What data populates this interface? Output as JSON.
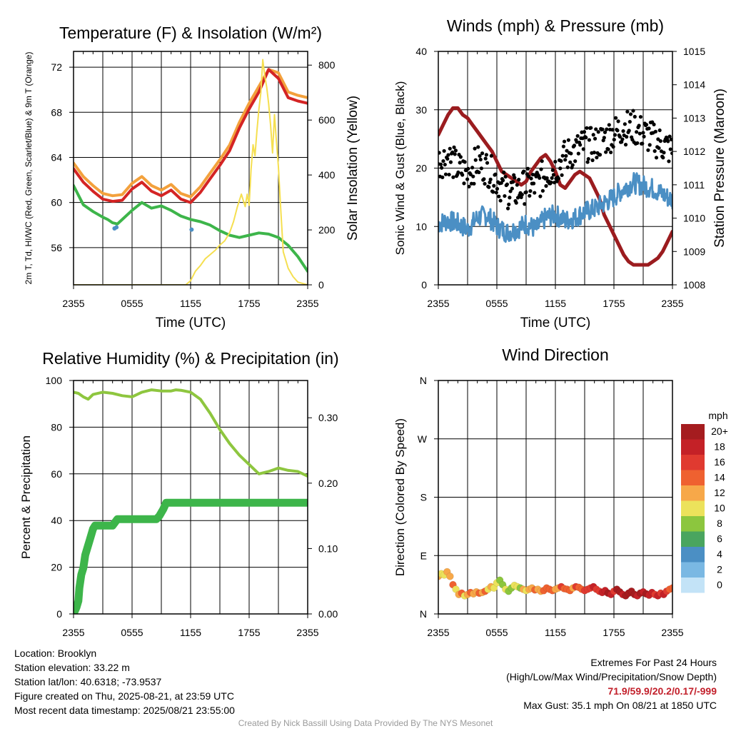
{
  "chart_data": [
    {
      "type": "line",
      "title": "Temperature (F) & Insolation (W/m²)",
      "xlabel": "Time (UTC)",
      "ylabel": "2m T, Td, HI/WC (Red, Green, Scarlet/Blue) & 9m T (Orange)",
      "ylabel_right": "Solar Insolation (Yellow)",
      "x_ticks": [
        "2355",
        "0555",
        "1155",
        "1755",
        "2355"
      ],
      "xlim_hours": [
        0,
        24
      ],
      "y_ticks": [
        56,
        60,
        64,
        68,
        72
      ],
      "ylim": [
        52.7,
        73.4
      ],
      "y2_ticks": [
        0,
        200,
        400,
        600,
        800
      ],
      "y2lim": [
        0,
        850
      ],
      "grid": true,
      "series": [
        {
          "name": "9m T",
          "color": "#f3a13c",
          "axis": "left",
          "width": 4,
          "offset": 0.3,
          "x": [
            0,
            1.0,
            2,
            3,
            4,
            5,
            6,
            7,
            8,
            9,
            10,
            11,
            12,
            13,
            14,
            15,
            16,
            17,
            18,
            19,
            20,
            21,
            22,
            23,
            24
          ],
          "y": [
            63.2,
            62,
            61.2,
            60.5,
            60.3,
            60.4,
            61.4,
            62.0,
            61.2,
            60.8,
            61.3,
            60.5,
            60.2,
            61.1,
            62.3,
            63.5,
            64.8,
            66.8,
            68.5,
            70.0,
            71.5,
            71.2,
            69.5,
            69.2,
            69.0
          ]
        },
        {
          "name": "2m T",
          "color": "#d42424",
          "axis": "left",
          "width": 4,
          "x": [
            0,
            1.0,
            2,
            3,
            4,
            5,
            6,
            7,
            8,
            9,
            10,
            11,
            12,
            13,
            14,
            15,
            16,
            17,
            18,
            19,
            20,
            21,
            22,
            23,
            24
          ],
          "y": [
            63.0,
            61.8,
            61.0,
            60.3,
            60.1,
            60.2,
            61.2,
            61.8,
            61.0,
            60.6,
            61.1,
            60.3,
            60.0,
            60.9,
            62.1,
            63.3,
            64.6,
            66.6,
            68.3,
            69.8,
            71.8,
            71.0,
            69.3,
            69.0,
            68.8
          ]
        },
        {
          "name": "Dewpoint",
          "color": "#3db54a",
          "axis": "left",
          "width": 4,
          "x": [
            0,
            1,
            2,
            3,
            3.5,
            4,
            4.5,
            5,
            6,
            7,
            8,
            9,
            10,
            11,
            12,
            13,
            14,
            15,
            16,
            17,
            18,
            19,
            20,
            21,
            22,
            23,
            24
          ],
          "y": [
            61.5,
            59.8,
            59.2,
            58.7,
            58.5,
            58.2,
            58.1,
            58.5,
            59.3,
            60.0,
            59.5,
            59.7,
            59.3,
            58.8,
            58.5,
            58.3,
            58.0,
            57.5,
            57.1,
            56.9,
            57.1,
            57.3,
            57.2,
            56.9,
            56.2,
            55.2,
            53.9
          ]
        },
        {
          "name": "Heat Index/Wind Chill",
          "color": "#4b8fc4",
          "axis": "left",
          "width": 4,
          "dots": true,
          "x": [
            4.2,
            4.4,
            12.1
          ],
          "y": [
            57.7,
            57.8,
            57.6
          ]
        },
        {
          "name": "Solar Insolation",
          "color": "#f5df50",
          "axis": "right",
          "width": 2,
          "x": [
            0,
            11.5,
            12.0,
            12.5,
            13,
            13.5,
            14,
            14.5,
            15,
            15.5,
            16,
            16.4,
            16.8,
            17.2,
            17.6,
            17.8,
            18.0,
            18.2,
            18.4,
            18.6,
            18.8,
            19.0,
            19.2,
            19.4,
            19.6,
            19.8,
            20.0,
            20.2,
            20.4,
            20.6,
            20.8,
            21.0,
            21.2,
            21.5,
            22,
            22.5,
            23,
            24
          ],
          "y": [
            0,
            0,
            15,
            50,
            70,
            95,
            110,
            125,
            145,
            160,
            190,
            230,
            285,
            330,
            285,
            330,
            290,
            420,
            510,
            470,
            560,
            640,
            700,
            820,
            760,
            720,
            660,
            580,
            480,
            620,
            520,
            430,
            300,
            120,
            60,
            30,
            10,
            0
          ]
        }
      ]
    },
    {
      "type": "line",
      "title": "Winds (mph) & Pressure (mb)",
      "xlabel": "Time (UTC)",
      "ylabel": "Sonic Wind & Gust (Blue, Black)",
      "ylabel_right": "Station Pressure (Maroon)",
      "x_ticks": [
        "2355",
        "0555",
        "1155",
        "1755",
        "2355"
      ],
      "xlim_hours": [
        0,
        24
      ],
      "y_ticks": [
        0,
        10,
        20,
        30,
        40
      ],
      "ylim": [
        0,
        40
      ],
      "y2_ticks": [
        1008,
        1009,
        1010,
        1011,
        1012,
        1013,
        1014,
        1015
      ],
      "y2lim": [
        1008,
        1015
      ],
      "grid": true,
      "series": [
        {
          "name": "Station Pressure",
          "color": "#9b1c1f",
          "axis": "right",
          "width": 5,
          "x": [
            0,
            0.5,
            1,
            1.5,
            2,
            2.5,
            3,
            3.5,
            4,
            4.5,
            5,
            5.5,
            6,
            6.5,
            7,
            7.5,
            8,
            8.5,
            9,
            9.5,
            10,
            10.5,
            11,
            11.5,
            12,
            12.5,
            13,
            13.5,
            14,
            14.5,
            15,
            15.5,
            16,
            16.5,
            17,
            17.5,
            18,
            18.5,
            19,
            19.5,
            20,
            20.5,
            21,
            21.5,
            22,
            22.5,
            23,
            23.5,
            24
          ],
          "y": [
            1012.5,
            1012.8,
            1013.1,
            1013.3,
            1013.3,
            1013.1,
            1013.0,
            1012.8,
            1012.6,
            1012.4,
            1012.2,
            1012.0,
            1011.7,
            1011.4,
            1011.3,
            1011.2,
            1011.1,
            1011.0,
            1011.1,
            1011.4,
            1011.6,
            1011.8,
            1011.9,
            1011.7,
            1011.4,
            1011.0,
            1010.9,
            1011.1,
            1011.3,
            1011.4,
            1011.3,
            1011.2,
            1010.9,
            1010.6,
            1010.1,
            1009.8,
            1009.5,
            1009.2,
            1008.9,
            1008.7,
            1008.6,
            1008.6,
            1008.6,
            1008.6,
            1008.7,
            1008.8,
            1009.0,
            1009.3,
            1009.6
          ]
        },
        {
          "name": "Sonic Wind",
          "color": "#4b8fc4",
          "axis": "left",
          "width": 3,
          "noisy": true,
          "amp": 1.8,
          "x": [
            0,
            1,
            2,
            3,
            4,
            5,
            6,
            7,
            8,
            9,
            10,
            11,
            12,
            13,
            14,
            15,
            16,
            17,
            18,
            19,
            20,
            21,
            22,
            23,
            24
          ],
          "y": [
            10.5,
            11.0,
            10.5,
            9.5,
            11.5,
            12.0,
            10.0,
            9.0,
            9.5,
            10.5,
            9.5,
            11.5,
            12.0,
            11.0,
            11.5,
            12.5,
            13.0,
            14.0,
            15.0,
            16.5,
            17.5,
            17.0,
            16.5,
            15.5,
            14.5
          ]
        },
        {
          "name": "Gust",
          "color": "#000000",
          "axis": "left",
          "scatter": true,
          "amp": 3.0,
          "x": [
            0,
            1,
            2,
            3,
            4,
            5,
            6,
            7,
            8,
            9,
            10,
            11,
            12,
            13,
            14,
            15,
            16,
            17,
            18,
            19,
            20,
            21,
            22,
            23,
            24
          ],
          "y": [
            21,
            22,
            20,
            19,
            21,
            20,
            18,
            16,
            16,
            17,
            17,
            19,
            20,
            22,
            23,
            24,
            24,
            25,
            26,
            27,
            27,
            26,
            25,
            24,
            23
          ]
        }
      ]
    },
    {
      "type": "line",
      "title": "Relative Humidity (%) & Precipitation (in)",
      "ylabel": "Percent & Precipitation",
      "x_ticks": [
        "2355",
        "0555",
        "1155",
        "1755",
        "2355"
      ],
      "xlim_hours": [
        0,
        24
      ],
      "y_ticks": [
        0,
        20,
        40,
        60,
        80,
        100
      ],
      "ylim": [
        0,
        100
      ],
      "y2_ticks": [
        "0.00",
        "0.10",
        "0.20",
        "0.30"
      ],
      "y2_values": [
        0,
        0.1,
        0.2,
        0.3
      ],
      "y2lim": [
        0,
        0.357
      ],
      "grid": true,
      "series": [
        {
          "name": "Relative Humidity",
          "color": "#8ec63f",
          "axis": "left",
          "width": 4,
          "x": [
            0,
            0.5,
            1,
            1.5,
            2,
            3,
            4,
            5,
            6,
            7,
            8,
            9,
            10,
            10.5,
            11,
            12,
            13,
            14,
            15,
            16,
            17,
            18,
            19,
            20,
            21,
            22,
            23,
            24
          ],
          "y": [
            95,
            94.5,
            93,
            92,
            94,
            95,
            94.5,
            93.5,
            93,
            95,
            96,
            95.5,
            95.5,
            96,
            95.8,
            95,
            92,
            86,
            79,
            73,
            68,
            64,
            60,
            61,
            62.5,
            61.5,
            61,
            59
          ]
        },
        {
          "name": "Precipitation",
          "color": "#3db54a",
          "axis": "right",
          "width": 11,
          "x": [
            0,
            0.3,
            0.5,
            0.6,
            0.8,
            1.0,
            1.2,
            1.4,
            1.6,
            1.8,
            2.0,
            2.2,
            2.5,
            2.9,
            3.3,
            3.6,
            4.0,
            4.5,
            5,
            5.5,
            6,
            7,
            8,
            8.5,
            8.8,
            9.2,
            9.5,
            10,
            12,
            14,
            16,
            18,
            20,
            22,
            24
          ],
          "y": [
            0,
            0.01,
            0.02,
            0.04,
            0.06,
            0.07,
            0.09,
            0.1,
            0.11,
            0.12,
            0.13,
            0.135,
            0.135,
            0.135,
            0.135,
            0.135,
            0.135,
            0.145,
            0.145,
            0.145,
            0.145,
            0.145,
            0.145,
            0.145,
            0.15,
            0.16,
            0.17,
            0.17,
            0.17,
            0.17,
            0.17,
            0.17,
            0.17,
            0.17,
            0.17
          ]
        }
      ]
    },
    {
      "type": "scatter",
      "title": "Wind Direction",
      "ylabel": "Direction (Colored By Speed)",
      "x_ticks": [
        "2355",
        "0555",
        "1155",
        "1755",
        "2355"
      ],
      "xlim_hours": [
        0,
        24
      ],
      "y_ticks": [
        "N",
        "E",
        "S",
        "W",
        "N"
      ],
      "y_values": [
        0,
        90,
        180,
        270,
        360
      ],
      "ylim": [
        0,
        360
      ],
      "grid": true,
      "points": {
        "x": [
          0,
          0.3,
          0.6,
          0.9,
          1.2,
          1.5,
          1.8,
          2.1,
          2.4,
          2.7,
          3.0,
          3.3,
          3.6,
          3.9,
          4.2,
          4.5,
          4.8,
          5.1,
          5.4,
          5.7,
          6.0,
          6.3,
          6.6,
          6.9,
          7.2,
          7.5,
          7.8,
          8.1,
          8.4,
          8.7,
          9.0,
          9.3,
          9.6,
          9.9,
          10.2,
          10.5,
          10.8,
          11.1,
          11.4,
          11.7,
          12.0,
          12.3,
          12.6,
          12.9,
          13.2,
          13.5,
          13.8,
          14.1,
          14.4,
          14.7,
          15.0,
          15.3,
          15.6,
          15.9,
          16.2,
          16.5,
          16.8,
          17.1,
          17.4,
          17.7,
          18.0,
          18.3,
          18.6,
          18.9,
          19.2,
          19.5,
          19.8,
          20.1,
          20.4,
          20.7,
          21.0,
          21.3,
          21.6,
          21.9,
          22.2,
          22.5,
          22.8,
          23.1,
          23.4,
          23.7,
          24.0
        ],
        "y": [
          58,
          62,
          60,
          65,
          58,
          45,
          38,
          30,
          32,
          28,
          30,
          33,
          31,
          34,
          32,
          33,
          35,
          38,
          42,
          40,
          48,
          52,
          45,
          38,
          35,
          40,
          44,
          42,
          40,
          38,
          36,
          38,
          40,
          37,
          38,
          35,
          36,
          40,
          38,
          36,
          38,
          40,
          42,
          39,
          38,
          36,
          40,
          42,
          41,
          38,
          36,
          38,
          40,
          42,
          38,
          35,
          33,
          36,
          32,
          30,
          35,
          38,
          34,
          30,
          28,
          32,
          35,
          30,
          28,
          32,
          34,
          31,
          29,
          33,
          30,
          28,
          32,
          30,
          35,
          38,
          40
        ],
        "speed": [
          13,
          11,
          10,
          12,
          12,
          14,
          11,
          13,
          15,
          10,
          12,
          14,
          13,
          13,
          15,
          12,
          14,
          11,
          13,
          10,
          11,
          9,
          9,
          10,
          9,
          8,
          10,
          11,
          9,
          12,
          10,
          12,
          13,
          14,
          12,
          13,
          15,
          14,
          15,
          14,
          13,
          13,
          16,
          14,
          15,
          15,
          13,
          16,
          14,
          15,
          16,
          17,
          16,
          18,
          17,
          16,
          18,
          19,
          20,
          18,
          17,
          20,
          21,
          19,
          20,
          22,
          20,
          21,
          18,
          20,
          19,
          20,
          18,
          19,
          17,
          18,
          17,
          19,
          16,
          14,
          15
        ]
      },
      "legend": {
        "title": "mph",
        "labels": [
          "20+",
          "18",
          "16",
          "14",
          "12",
          "10",
          "8",
          "6",
          "4",
          "2",
          "0"
        ],
        "colors": [
          "#a51c1f",
          "#c42127",
          "#e03a30",
          "#ef6130",
          "#f7a849",
          "#ece25b",
          "#8cc63e",
          "#4aa55f",
          "#4b8fc4",
          "#7ab8e3",
          "#c3e3f7"
        ]
      }
    }
  ],
  "info_left": {
    "location": "Location: Brooklyn",
    "elevation": "Station elevation: 33.22 m",
    "latlon": "Station lat/lon: 40.6318; -73.9537",
    "created": "Figure created on Thu, 2025-08-21, at 23:59 UTC",
    "recent": "Most recent data timestamp: 2025/08/21 23:55:00"
  },
  "info_right": {
    "line1": "Extremes For Past 24 Hours",
    "line2": "(High/Low/Max Wind/Precipitation/Snow Depth)",
    "extremes": "71.9/59.9/20.2/0.17/-999",
    "gust": "Max Gust: 35.1 mph On 08/21 at 1850 UTC"
  },
  "credit": "Created By Nick Bassill Using Data Provided By The NYS Mesonet"
}
